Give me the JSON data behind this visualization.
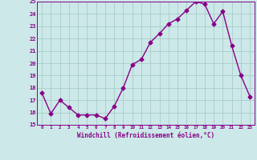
{
  "x": [
    0,
    1,
    2,
    3,
    4,
    5,
    6,
    7,
    8,
    9,
    10,
    11,
    12,
    13,
    14,
    15,
    16,
    17,
    18,
    19,
    20,
    21,
    22,
    23
  ],
  "y": [
    17.6,
    15.9,
    17.0,
    16.4,
    15.8,
    15.8,
    15.8,
    15.5,
    16.5,
    18.0,
    19.9,
    20.3,
    21.7,
    22.4,
    23.2,
    23.6,
    24.3,
    25.0,
    24.8,
    23.2,
    24.2,
    21.4,
    19.0,
    17.3
  ],
  "line_color": "#880088",
  "bg_color": "#cce8e8",
  "grid_color": "#aacccc",
  "xlabel": "Windchill (Refroidissement éolien,°C)",
  "ylim": [
    15,
    25
  ],
  "xlim": [
    -0.5,
    23.5
  ],
  "yticks": [
    15,
    16,
    17,
    18,
    19,
    20,
    21,
    22,
    23,
    24,
    25
  ],
  "xticks": [
    0,
    1,
    2,
    3,
    4,
    5,
    6,
    7,
    8,
    9,
    10,
    11,
    12,
    13,
    14,
    15,
    16,
    17,
    18,
    19,
    20,
    21,
    22,
    23
  ],
  "marker": "D",
  "marker_size": 2.5,
  "line_width": 1.0
}
